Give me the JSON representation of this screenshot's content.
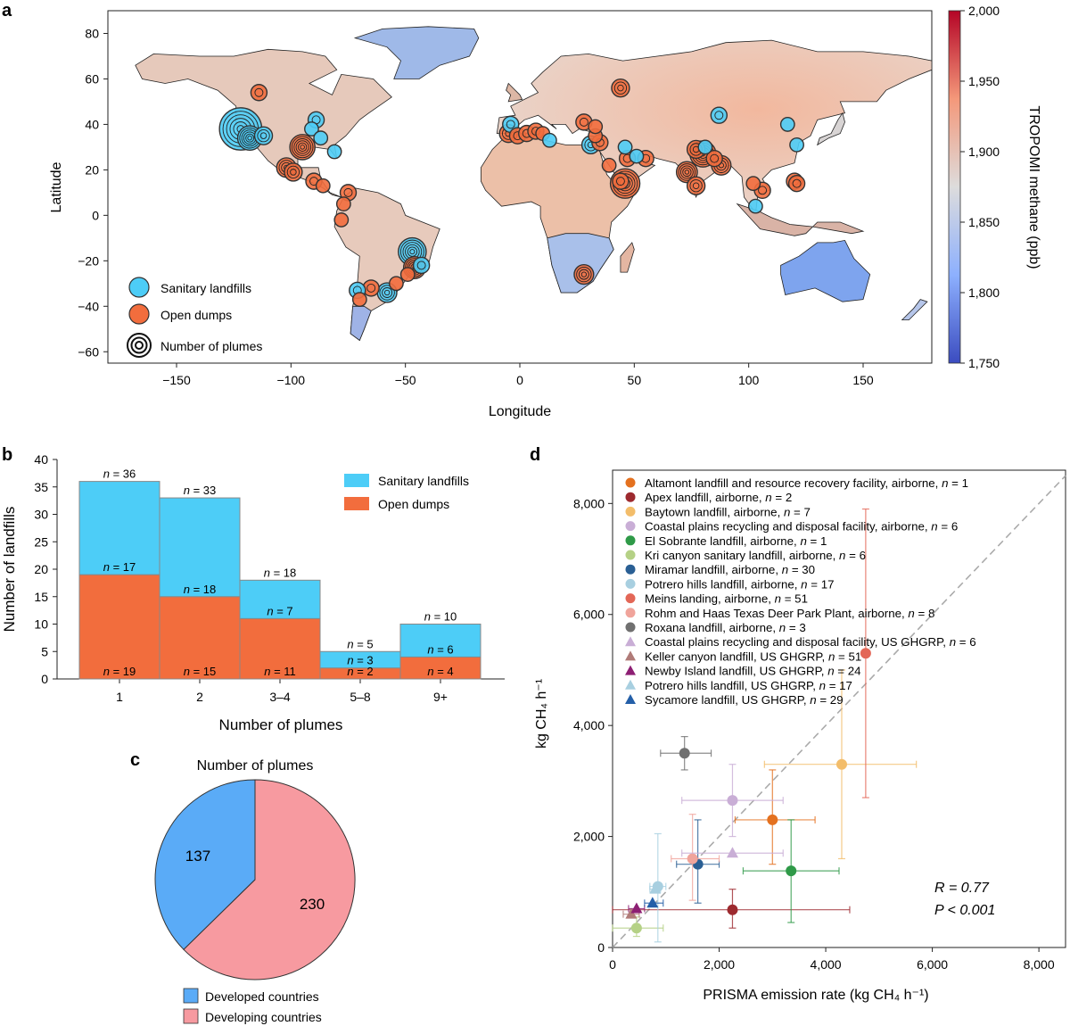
{
  "panels": {
    "a": "a",
    "b": "b",
    "c": "c",
    "d": "d"
  },
  "colors": {
    "sanitary": "#4dcdf7",
    "open_dumps": "#f26d3d",
    "developed": "#5aabf7",
    "developing": "#f79aa0",
    "land_light": "#dedbd8",
    "ocean": "#ffffff"
  },
  "chart_data": [
    {
      "panel": "a",
      "type": "scatter",
      "xlabel": "Longitude",
      "ylabel": "Latitude",
      "xlim": [
        -180,
        180
      ],
      "ylim": [
        -65,
        90
      ],
      "xticks": [
        -150,
        -100,
        -50,
        0,
        50,
        100,
        150
      ],
      "xtick_labels": [
        "−150",
        "−100",
        "−50",
        "0",
        "50",
        "100",
        "150"
      ],
      "yticks": [
        -60,
        -40,
        -20,
        0,
        20,
        40,
        60,
        80
      ],
      "ytick_labels": [
        "−60",
        "−40",
        "−20",
        "0",
        "20",
        "40",
        "60",
        "80"
      ],
      "colorbar": {
        "label": "TROPOMI methane (ppb)",
        "min": 1750,
        "max": 2000,
        "ticks": [
          1750,
          1800,
          1850,
          1900,
          1950,
          2000
        ],
        "tick_labels": [
          "1,750",
          "1,800",
          "1,850",
          "1,900",
          "1,950",
          "2,000"
        ],
        "colormap": "coolwarm"
      },
      "legend": [
        "Sanitary landfills",
        "Open dumps",
        "Number of plumes"
      ],
      "legend_position": "bottom-left",
      "sites": [
        {
          "lon": -122,
          "lat": 38,
          "kind": "sanitary",
          "plumes": 36
        },
        {
          "lon": -118,
          "lat": 34,
          "kind": "sanitary",
          "plumes": 8
        },
        {
          "lon": -112,
          "lat": 35,
          "kind": "sanitary",
          "plumes": 3
        },
        {
          "lon": -114,
          "lat": 54,
          "kind": "open",
          "plumes": 2
        },
        {
          "lon": -89,
          "lat": 42,
          "kind": "sanitary",
          "plumes": 2
        },
        {
          "lon": -91,
          "lat": 38,
          "kind": "sanitary",
          "plumes": 1
        },
        {
          "lon": -95,
          "lat": 30,
          "kind": "open",
          "plumes": 9
        },
        {
          "lon": -87,
          "lat": 34,
          "kind": "sanitary",
          "plumes": 1
        },
        {
          "lon": -81,
          "lat": 28,
          "kind": "sanitary",
          "plumes": 1
        },
        {
          "lon": -102,
          "lat": 21,
          "kind": "open",
          "plumes": 4
        },
        {
          "lon": -99,
          "lat": 19,
          "kind": "open",
          "plumes": 3
        },
        {
          "lon": -90,
          "lat": 15,
          "kind": "open",
          "plumes": 2
        },
        {
          "lon": -86,
          "lat": 13,
          "kind": "open",
          "plumes": 1
        },
        {
          "lon": -75,
          "lat": 10,
          "kind": "open",
          "plumes": 2
        },
        {
          "lon": -77,
          "lat": 5,
          "kind": "open",
          "plumes": 1
        },
        {
          "lon": -78,
          "lat": -2,
          "kind": "open",
          "plumes": 1
        },
        {
          "lon": -47,
          "lat": -16,
          "kind": "sanitary",
          "plumes": 12
        },
        {
          "lon": -46,
          "lat": -23,
          "kind": "open",
          "plumes": 6
        },
        {
          "lon": -43,
          "lat": -22,
          "kind": "sanitary",
          "plumes": 2
        },
        {
          "lon": -49,
          "lat": -26,
          "kind": "open",
          "plumes": 1
        },
        {
          "lon": -58,
          "lat": -34,
          "kind": "sanitary",
          "plumes": 4
        },
        {
          "lon": -65,
          "lat": -32,
          "kind": "open",
          "plumes": 2
        },
        {
          "lon": -71,
          "lat": -33,
          "kind": "sanitary",
          "plumes": 2
        },
        {
          "lon": -70,
          "lat": -37,
          "kind": "open",
          "plumes": 1
        },
        {
          "lon": -54,
          "lat": -30,
          "kind": "open",
          "plumes": 1
        },
        {
          "lon": -4,
          "lat": 40,
          "kind": "sanitary",
          "plumes": 2
        },
        {
          "lon": -5,
          "lat": 36,
          "kind": "open",
          "plumes": 3
        },
        {
          "lon": -1,
          "lat": 35,
          "kind": "open",
          "plumes": 2
        },
        {
          "lon": 3,
          "lat": 36,
          "kind": "open",
          "plumes": 2
        },
        {
          "lon": 7,
          "lat": 37,
          "kind": "open",
          "plumes": 2
        },
        {
          "lon": 10,
          "lat": 36,
          "kind": "open",
          "plumes": 1
        },
        {
          "lon": 13,
          "lat": 33,
          "kind": "sanitary",
          "plumes": 1
        },
        {
          "lon": 28,
          "lat": 41,
          "kind": "open",
          "plumes": 2
        },
        {
          "lon": 31,
          "lat": 31,
          "kind": "sanitary",
          "plumes": 3
        },
        {
          "lon": 33,
          "lat": 35,
          "kind": "open",
          "plumes": 1
        },
        {
          "lon": 35,
          "lat": 32,
          "kind": "open",
          "plumes": 2
        },
        {
          "lon": 33,
          "lat": 39,
          "kind": "open",
          "plumes": 1
        },
        {
          "lon": 44,
          "lat": 56,
          "kind": "open",
          "plumes": 3
        },
        {
          "lon": 39,
          "lat": 22,
          "kind": "open",
          "plumes": 1
        },
        {
          "lon": 47,
          "lat": 25,
          "kind": "open",
          "plumes": 2
        },
        {
          "lon": 46,
          "lat": 30,
          "kind": "sanitary",
          "plumes": 1
        },
        {
          "lon": 51,
          "lat": 26,
          "kind": "sanitary",
          "plumes": 1
        },
        {
          "lon": 55,
          "lat": 25,
          "kind": "open",
          "plumes": 2
        },
        {
          "lon": 44,
          "lat": 15,
          "kind": "open",
          "plumes": 2
        },
        {
          "lon": 46,
          "lat": 14,
          "kind": "open",
          "plumes": 14
        },
        {
          "lon": 28,
          "lat": -26,
          "kind": "open",
          "plumes": 4
        },
        {
          "lon": 77,
          "lat": 29,
          "kind": "open",
          "plumes": 3
        },
        {
          "lon": 80,
          "lat": 27,
          "kind": "open",
          "plumes": 10
        },
        {
          "lon": 73,
          "lat": 19,
          "kind": "open",
          "plumes": 5
        },
        {
          "lon": 77,
          "lat": 13,
          "kind": "open",
          "plumes": 3
        },
        {
          "lon": 88,
          "lat": 22,
          "kind": "open",
          "plumes": 4
        },
        {
          "lon": 85,
          "lat": 25,
          "kind": "open",
          "plumes": 2
        },
        {
          "lon": 81,
          "lat": 30,
          "kind": "sanitary",
          "plumes": 1
        },
        {
          "lon": 87,
          "lat": 44,
          "kind": "sanitary",
          "plumes": 2
        },
        {
          "lon": 117,
          "lat": 40,
          "kind": "sanitary",
          "plumes": 1
        },
        {
          "lon": 121,
          "lat": 31,
          "kind": "sanitary",
          "plumes": 1
        },
        {
          "lon": 120,
          "lat": 15,
          "kind": "open",
          "plumes": 2
        },
        {
          "lon": 121,
          "lat": 14,
          "kind": "open",
          "plumes": 2
        },
        {
          "lon": 102,
          "lat": 14,
          "kind": "open",
          "plumes": 1
        },
        {
          "lon": 106,
          "lat": 11,
          "kind": "open",
          "plumes": 2
        },
        {
          "lon": 103,
          "lat": 4,
          "kind": "sanitary",
          "plumes": 1
        }
      ]
    },
    {
      "panel": "b",
      "type": "bar",
      "stacked": true,
      "xlabel": "Number of plumes",
      "ylabel": "Number of landfills",
      "categories": [
        "1",
        "2",
        "3–4",
        "5–8",
        "9+"
      ],
      "ylim": [
        0,
        40
      ],
      "yticks": [
        0,
        5,
        10,
        15,
        20,
        25,
        30,
        35,
        40
      ],
      "series": [
        {
          "name": "Open dumps",
          "values": [
            19,
            15,
            11,
            2,
            4
          ]
        },
        {
          "name": "Sanitary landfills",
          "values": [
            17,
            18,
            7,
            3,
            6
          ]
        }
      ],
      "totals": [
        36,
        33,
        18,
        5,
        10
      ],
      "legend_position": "top-right"
    },
    {
      "panel": "c",
      "type": "pie",
      "title": "Number of plumes",
      "slices": [
        {
          "name": "Developed countries",
          "value": 137
        },
        {
          "name": "Developing countries",
          "value": 230
        }
      ],
      "legend_position": "bottom"
    },
    {
      "panel": "d",
      "type": "scatter",
      "xlabel": "PRISMA emission rate (kg CH₄ h⁻¹)",
      "ylabel": "kg CH₄ h⁻¹",
      "xlim": [
        0,
        8500
      ],
      "ylim": [
        0,
        8600
      ],
      "xticks": [
        0,
        2000,
        4000,
        6000,
        8000
      ],
      "xtick_labels": [
        "0",
        "2,000",
        "4,000",
        "6,000",
        "8,000"
      ],
      "yticks": [
        0,
        2000,
        4000,
        6000,
        8000
      ],
      "ytick_labels": [
        "0",
        "2,000",
        "4,000",
        "6,000",
        "8,000"
      ],
      "identity_line": true,
      "annotation_r": "R = 0.77",
      "annotation_p": "P < 0.001",
      "legend_position": "top-left",
      "series": [
        {
          "name": "Altamont landfill and resource recovery facility, airborne, n = 1",
          "marker": "circle",
          "color": "#e4711f",
          "points": [
            {
              "x": 3000,
              "y": 2300,
              "xerr": [
                2300,
                3800
              ],
              "yerr": [
                1500,
                3200
              ]
            }
          ]
        },
        {
          "name": "Apex landfill, airborne, n = 2",
          "marker": "circle",
          "color": "#9d2a2f",
          "points": [
            {
              "x": 2250,
              "y": 680,
              "xerr": [
                0,
                4450
              ],
              "yerr": [
                350,
                1050
              ]
            }
          ]
        },
        {
          "name": "Baytown landfill, airborne, n = 7",
          "marker": "circle",
          "color": "#f3bd6a",
          "points": [
            {
              "x": 4300,
              "y": 3300,
              "xerr": [
                2850,
                5700
              ],
              "yerr": [
                1600,
                5000
              ]
            }
          ]
        },
        {
          "name": "Coastal plains recycling and disposal facility, airborne, n = 6",
          "marker": "circle",
          "color": "#c9aed6",
          "points": [
            {
              "x": 2250,
              "y": 2650,
              "xerr": [
                1300,
                3200
              ],
              "yerr": [
                2000,
                3300
              ]
            }
          ]
        },
        {
          "name": "El Sobrante landfill, airborne, n = 1",
          "marker": "circle",
          "color": "#2f9a48",
          "points": [
            {
              "x": 3350,
              "y": 1380,
              "xerr": [
                2450,
                4250
              ],
              "yerr": [
                450,
                2300
              ]
            }
          ]
        },
        {
          "name": "Kri canyon sanitary landfill, airborne, n = 6",
          "marker": "circle",
          "color": "#b5d186",
          "points": [
            {
              "x": 450,
              "y": 350,
              "xerr": [
                0,
                950
              ],
              "yerr": [
                200,
                550
              ]
            }
          ]
        },
        {
          "name": "Miramar landfill, airborne, n = 30",
          "marker": "circle",
          "color": "#2a5f94",
          "points": [
            {
              "x": 1600,
              "y": 1500,
              "xerr": [
                1200,
                2000
              ],
              "yerr": [
                800,
                2300
              ]
            }
          ]
        },
        {
          "name": "Potrero hills landfill, airborne, n = 17",
          "marker": "circle",
          "color": "#a8cfe0",
          "points": [
            {
              "x": 850,
              "y": 1100,
              "xerr": [
                700,
                1000
              ],
              "yerr": [
                100,
                2050
              ]
            }
          ]
        },
        {
          "name": "Meins landing, airborne, n = 51",
          "marker": "circle",
          "color": "#e36757",
          "points": [
            {
              "x": 4750,
              "y": 5300,
              "xerr": [
                4700,
                4800
              ],
              "yerr": [
                2700,
                7900
              ]
            }
          ]
        },
        {
          "name": "Rohm and Haas Texas Deer Park Plant, airborne, n = 8",
          "marker": "circle",
          "color": "#f0a49b",
          "points": [
            {
              "x": 1500,
              "y": 1600,
              "xerr": [
                1100,
                2000
              ],
              "yerr": [
                850,
                2400
              ]
            }
          ]
        },
        {
          "name": "Roxana landfill, airborne, n = 3",
          "marker": "circle",
          "color": "#707070",
          "points": [
            {
              "x": 1350,
              "y": 3500,
              "xerr": [
                900,
                1850
              ],
              "yerr": [
                3200,
                3800
              ]
            }
          ]
        },
        {
          "name": "Coastal plains recycling and disposal facility, US GHGRP, n = 6",
          "marker": "triangle",
          "color": "#c9aed6",
          "points": [
            {
              "x": 2250,
              "y": 1700,
              "xerr": [
                1300,
                3200
              ],
              "yerr": [
                1700,
                1700
              ]
            }
          ]
        },
        {
          "name": "Keller canyon landfill, US GHGRP, n = 51",
          "marker": "triangle",
          "color": "#b07b78",
          "points": [
            {
              "x": 350,
              "y": 600,
              "xerr": [
                200,
                500
              ],
              "yerr": [
                600,
                600
              ]
            }
          ]
        },
        {
          "name": "Newby Island landfill, US GHGRP, n = 24",
          "marker": "triangle",
          "color": "#8d1f73",
          "points": [
            {
              "x": 450,
              "y": 700,
              "xerr": [
                300,
                600
              ],
              "yerr": [
                700,
                700
              ]
            }
          ]
        },
        {
          "name": "Potrero hills landfill, US GHGRP, n = 17",
          "marker": "triangle",
          "color": "#a8cfe0",
          "points": [
            {
              "x": 800,
              "y": 1050,
              "xerr": [
                700,
                900
              ],
              "yerr": [
                1050,
                1050
              ]
            }
          ]
        },
        {
          "name": "Sycamore landfill, US GHGRP, n = 29",
          "marker": "triangle",
          "color": "#245fa8",
          "points": [
            {
              "x": 750,
              "y": 800,
              "xerr": [
                600,
                950
              ],
              "yerr": [
                800,
                800
              ]
            }
          ]
        }
      ]
    }
  ]
}
